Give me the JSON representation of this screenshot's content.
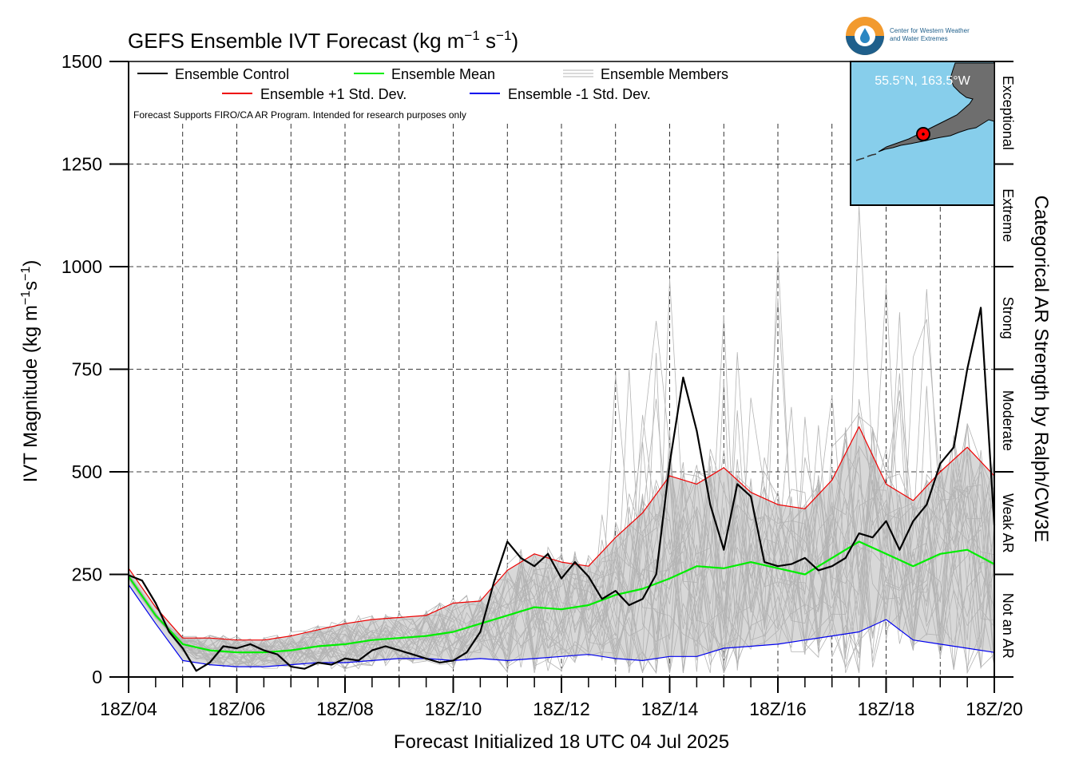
{
  "title_main": "GEFS Ensemble IVT Forecast (kg m",
  "title_exp1": "−1",
  "title_mid": " s",
  "title_exp2": "−1",
  "title_end": ")",
  "ylabel_main": "IVT Magnitude (kg m",
  "ylabel_exp1": "−1",
  "ylabel_mid": "s",
  "ylabel_exp2": "−1",
  "ylabel_end": ")",
  "xlabel": "Forecast Initialized 18 UTC 04 Jul 2025",
  "right_label": "Categorical AR Strength by Ralph/CW3E",
  "disclaimer": "Forecast Supports FIRO/CA AR Program. Intended for research purposes only",
  "logo_text_1": "Center for Western Weather",
  "logo_text_2": "and Water Extremes",
  "inset_label": "55.5°N, 163.5°W",
  "legend": {
    "control": "Ensemble Control",
    "mean": "Ensemble Mean",
    "members": "Ensemble Members",
    "plus": "Ensemble +1 Std. Dev.",
    "minus": "Ensemble -1 Std. Dev."
  },
  "colors": {
    "control": "#000000",
    "mean": "#00ee00",
    "plus": "#ee0000",
    "minus": "#0000ee",
    "members": "#b4b4b4",
    "spread": "#d8d8d8",
    "ocean": "#87ceeb",
    "land": "#6e6e6e",
    "marker": "#ff0000"
  },
  "chart_data": {
    "type": "line",
    "title": "GEFS Ensemble IVT Forecast (kg m−1 s−1)",
    "xlabel": "Forecast Initialized 18 UTC 04 Jul 2025",
    "ylabel": "IVT Magnitude (kg m−1s−1)",
    "x_unit": "forecast hours from 18Z 04 Jul 2025 (6-hourly)",
    "xlim": [
      0,
      384
    ],
    "ylim": [
      0,
      1500
    ],
    "x_ticklabels": [
      "18Z/04",
      "18Z/06",
      "18Z/08",
      "18Z/10",
      "18Z/12",
      "18Z/14",
      "18Z/16",
      "18Z/18",
      "18Z/20"
    ],
    "y_ticks": [
      0,
      250,
      500,
      750,
      1000,
      1250,
      1500
    ],
    "grid": true,
    "legend_position": "top-left",
    "categories": [
      {
        "label": "Not an AR",
        "from": 0,
        "to": 250
      },
      {
        "label": "Weak AR",
        "from": 250,
        "to": 500
      },
      {
        "label": "Moderate",
        "from": 500,
        "to": 750
      },
      {
        "label": "Strong",
        "from": 750,
        "to": 1000
      },
      {
        "label": "Extreme",
        "from": 1000,
        "to": 1250
      },
      {
        "label": "Exceptional",
        "from": 1250,
        "to": 1500
      }
    ],
    "series": [
      {
        "name": "Ensemble Control",
        "x": [
          0,
          6,
          12,
          18,
          24,
          30,
          36,
          42,
          48,
          54,
          60,
          66,
          72,
          78,
          84,
          90,
          96,
          102,
          108,
          114,
          120,
          126,
          132,
          138,
          144,
          150,
          156,
          162,
          168,
          174,
          180,
          186,
          192,
          198,
          204,
          210,
          216,
          222,
          228,
          234,
          240,
          246,
          252,
          258,
          264,
          270,
          276,
          282,
          288,
          294,
          300,
          306,
          312,
          318,
          324,
          330,
          336,
          342,
          348,
          354,
          360,
          366,
          372,
          378,
          384
        ],
        "values": [
          248,
          235,
          180,
          110,
          70,
          15,
          35,
          75,
          70,
          80,
          65,
          55,
          25,
          20,
          35,
          30,
          45,
          40,
          65,
          75,
          65,
          55,
          45,
          35,
          40,
          60,
          110,
          230,
          330,
          290,
          270,
          300,
          240,
          280,
          245,
          190,
          210,
          175,
          190,
          250,
          520,
          730,
          600,
          420,
          310,
          470,
          440,
          280,
          270,
          275,
          290,
          260,
          270,
          290,
          350,
          340,
          380,
          310,
          380,
          420,
          520,
          560,
          750,
          900,
          370
        ]
      },
      {
        "name": "Ensemble Mean",
        "x": [
          0,
          12,
          24,
          36,
          48,
          60,
          72,
          84,
          96,
          108,
          120,
          132,
          144,
          156,
          168,
          180,
          192,
          204,
          216,
          228,
          240,
          252,
          264,
          276,
          288,
          300,
          312,
          324,
          336,
          348,
          360,
          372,
          384
        ],
        "values": [
          245,
          150,
          80,
          65,
          60,
          60,
          65,
          75,
          80,
          90,
          95,
          100,
          110,
          130,
          150,
          170,
          165,
          175,
          200,
          215,
          240,
          270,
          265,
          280,
          265,
          250,
          290,
          330,
          300,
          270,
          300,
          310,
          275
        ]
      },
      {
        "name": "Ensemble +1 Std. Dev.",
        "x": [
          0,
          12,
          24,
          36,
          48,
          60,
          72,
          84,
          96,
          108,
          120,
          132,
          144,
          156,
          168,
          180,
          192,
          204,
          216,
          228,
          240,
          252,
          264,
          276,
          288,
          300,
          312,
          324,
          336,
          348,
          360,
          372,
          384
        ],
        "values": [
          265,
          170,
          95,
          95,
          90,
          90,
          100,
          115,
          130,
          140,
          145,
          150,
          180,
          185,
          260,
          300,
          280,
          270,
          340,
          400,
          490,
          470,
          510,
          450,
          420,
          410,
          480,
          610,
          470,
          430,
          500,
          560,
          490
        ]
      },
      {
        "name": "Ensemble -1 Std. Dev.",
        "x": [
          0,
          12,
          24,
          36,
          48,
          60,
          72,
          84,
          96,
          108,
          120,
          132,
          144,
          156,
          168,
          180,
          192,
          204,
          216,
          228,
          240,
          252,
          264,
          276,
          288,
          300,
          312,
          324,
          336,
          348,
          360,
          372,
          384
        ],
        "values": [
          225,
          130,
          40,
          30,
          25,
          25,
          30,
          35,
          35,
          40,
          45,
          45,
          40,
          45,
          40,
          45,
          50,
          55,
          45,
          40,
          50,
          50,
          70,
          75,
          80,
          90,
          100,
          110,
          140,
          90,
          80,
          70,
          60
        ]
      }
    ]
  }
}
